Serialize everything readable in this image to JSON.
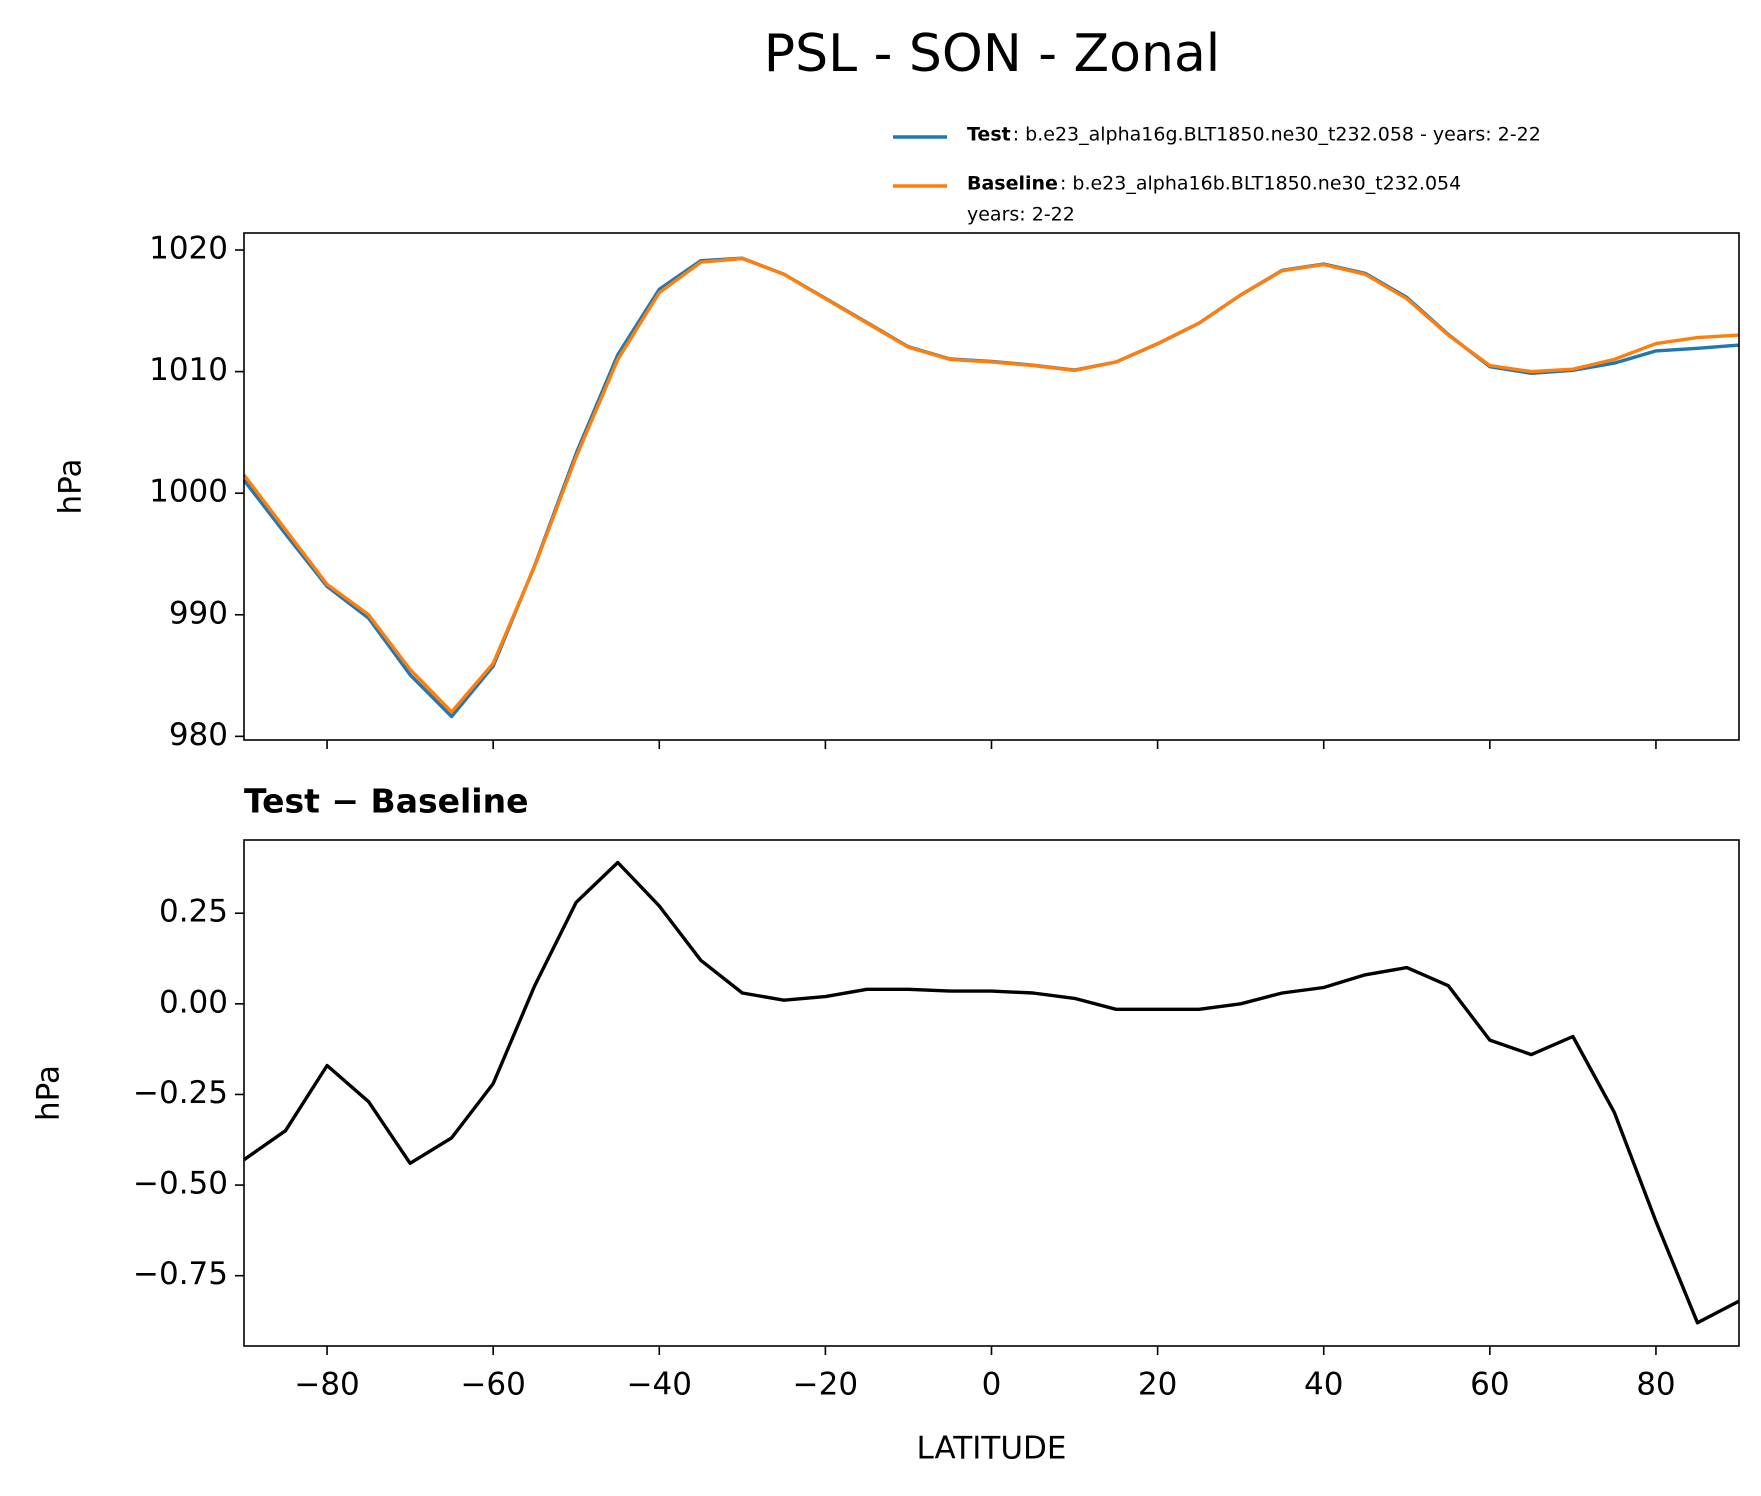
{
  "title": "PSL - SON - Zonal",
  "chart_data": [
    {
      "type": "line",
      "ylabel": "hPa",
      "xticklabels": false,
      "x": [
        -90,
        -85,
        -80,
        -75,
        -70,
        -65,
        -60,
        -55,
        -50,
        -45,
        -40,
        -35,
        -30,
        -25,
        -20,
        -15,
        -10,
        -5,
        0,
        5,
        10,
        15,
        20,
        25,
        30,
        35,
        40,
        45,
        50,
        55,
        60,
        65,
        70,
        75,
        80,
        85,
        90
      ],
      "xlim": [
        -90,
        90
      ],
      "xticks": [
        -80,
        -60,
        -40,
        -20,
        0,
        20,
        40,
        60,
        80
      ],
      "ylim": [
        979.7,
        1021.4
      ],
      "yticks": [
        980,
        990,
        1000,
        1010,
        1020
      ],
      "series": [
        {
          "name": "Test",
          "description": [
            ": b.e23_alpha16g.BLT1850.ne30_t232.058 - years: 2-22"
          ],
          "color": "#1f77b4",
          "values": [
            1001.07,
            996.65,
            992.33,
            989.73,
            985.06,
            981.63,
            985.78,
            994.05,
            1003.28,
            1011.39,
            1016.77,
            1019.12,
            1019.33,
            1018.01,
            1016.02,
            1014.04,
            1012.04,
            1011.04,
            1010.84,
            1010.53,
            1010.12,
            1010.79,
            1012.29,
            1013.99,
            1016.3,
            1018.33,
            1018.85,
            1018.08,
            1016.1,
            1013.05,
            1010.4,
            1009.86,
            1010.11,
            1010.7,
            1011.7,
            1011.92,
            1012.18
          ]
        },
        {
          "name": "Baseline",
          "description": [
            ": b.e23_alpha16b.BLT1850.ne30_t232.054",
            "years: 2-22"
          ],
          "color": "#ff7f0e",
          "values": [
            1001.5,
            997,
            992.5,
            990,
            985.5,
            982,
            986,
            994,
            1003,
            1011,
            1016.5,
            1019,
            1019.3,
            1018,
            1016,
            1014,
            1012,
            1011,
            1010.8,
            1010.5,
            1010.1,
            1010.8,
            1012.3,
            1014,
            1016.3,
            1018.3,
            1018.8,
            1018,
            1016,
            1013,
            1010.5,
            1010,
            1010.2,
            1011,
            1012.3,
            1012.8,
            1013
          ]
        }
      ]
    },
    {
      "type": "line",
      "title": "Test − Baseline",
      "ylabel": "hPa",
      "xlabel": "LATITUDE",
      "x": [
        -90,
        -85,
        -80,
        -75,
        -70,
        -65,
        -60,
        -55,
        -50,
        -45,
        -40,
        -35,
        -30,
        -25,
        -20,
        -15,
        -10,
        -5,
        0,
        5,
        10,
        15,
        20,
        25,
        30,
        35,
        40,
        45,
        50,
        55,
        60,
        65,
        70,
        75,
        80,
        85,
        90
      ],
      "xlim": [
        -90,
        90
      ],
      "xticks": [
        {
          "value": -80,
          "label": "−80"
        },
        {
          "value": -60,
          "label": "−60"
        },
        {
          "value": -40,
          "label": "−40"
        },
        {
          "value": -20,
          "label": "−20"
        },
        0,
        20,
        40,
        60,
        80
      ],
      "ylim": [
        -0.944,
        0.452
      ],
      "yticks": [
        {
          "value": -0.75,
          "label": "−0.75"
        },
        {
          "value": -0.5,
          "label": "−0.50"
        },
        {
          "value": -0.25,
          "label": "−0.25"
        },
        {
          "value": 0,
          "label": "0.00"
        },
        0.25
      ],
      "series": [
        {
          "color": "#000000",
          "values": [
            -0.43,
            -0.35,
            -0.17,
            -0.27,
            -0.44,
            -0.37,
            -0.22,
            0.05,
            0.28,
            0.39,
            0.27,
            0.12,
            0.03,
            0.01,
            0.02,
            0.04,
            0.04,
            0.035,
            0.035,
            0.03,
            0.015,
            -0.015,
            -0.015,
            -0.015,
            0.0,
            0.03,
            0.045,
            0.08,
            0.1,
            0.05,
            -0.1,
            -0.14,
            -0.09,
            -0.3,
            -0.6,
            -0.88,
            -0.82
          ]
        }
      ]
    }
  ]
}
